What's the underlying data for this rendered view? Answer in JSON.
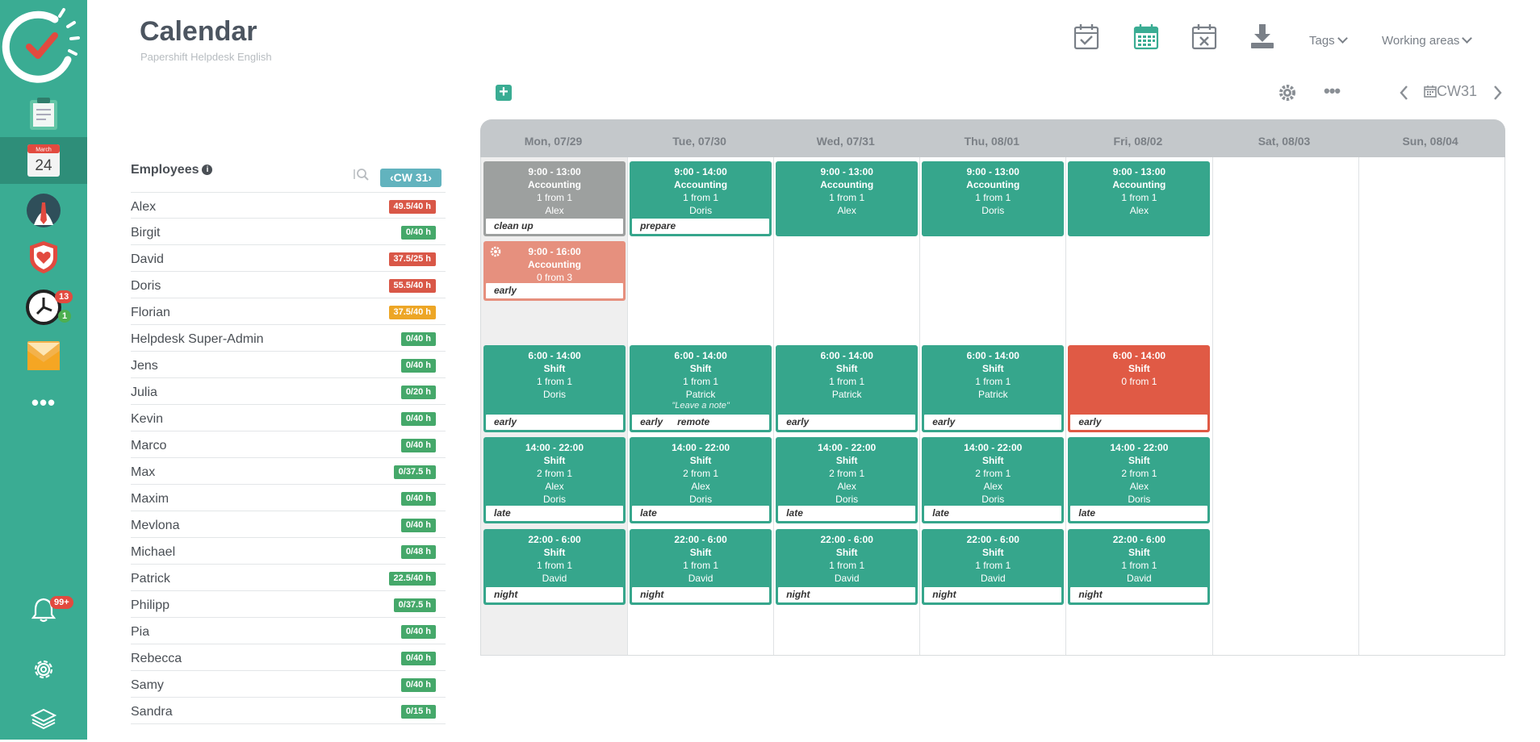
{
  "app": {
    "title": "Calendar",
    "subtitle": "Papershift Helpdesk English"
  },
  "sidebar": {
    "calendar_month": "March",
    "calendar_day": "24",
    "clock_badge_top": "13",
    "clock_badge_bottom": "1",
    "bell_badge": "99+",
    "more_label": "•••"
  },
  "header": {
    "tags_label": "Tags",
    "working_areas_label": "Working areas"
  },
  "toolbar": {
    "add_label": "+",
    "more_label": "•••",
    "week_label": "CW31"
  },
  "employees": {
    "title": "Employees",
    "info_label": "i",
    "cw_label": "‹CW 31›",
    "list": [
      {
        "name": "Alex",
        "hours": "49.5/40 h",
        "status": "red"
      },
      {
        "name": "Birgit",
        "hours": "0/40 h",
        "status": "green"
      },
      {
        "name": "David",
        "hours": "37.5/25 h",
        "status": "red"
      },
      {
        "name": "Doris",
        "hours": "55.5/40 h",
        "status": "red"
      },
      {
        "name": "Florian",
        "hours": "37.5/40 h",
        "status": "orange"
      },
      {
        "name": "Helpdesk Super-Admin",
        "hours": "0/40 h",
        "status": "green"
      },
      {
        "name": "Jens",
        "hours": "0/40 h",
        "status": "green"
      },
      {
        "name": "Julia",
        "hours": "0/20 h",
        "status": "green"
      },
      {
        "name": "Kevin",
        "hours": "0/40 h",
        "status": "green"
      },
      {
        "name": "Marco",
        "hours": "0/40 h",
        "status": "green"
      },
      {
        "name": "Max",
        "hours": "0/37.5 h",
        "status": "green"
      },
      {
        "name": "Maxim",
        "hours": "0/40 h",
        "status": "green"
      },
      {
        "name": "Mevlona",
        "hours": "0/40 h",
        "status": "green"
      },
      {
        "name": "Michael",
        "hours": "0/48 h",
        "status": "green"
      },
      {
        "name": "Patrick",
        "hours": "22.5/40 h",
        "status": "green"
      },
      {
        "name": "Philipp",
        "hours": "0/37.5 h",
        "status": "green"
      },
      {
        "name": "Pia",
        "hours": "0/40 h",
        "status": "green"
      },
      {
        "name": "Rebecca",
        "hours": "0/40 h",
        "status": "green"
      },
      {
        "name": "Samy",
        "hours": "0/40 h",
        "status": "green"
      },
      {
        "name": "Sandra",
        "hours": "0/15 h",
        "status": "green"
      }
    ]
  },
  "calendar": {
    "days": [
      "Mon, 07/29",
      "Tue, 07/30",
      "Wed, 07/31",
      "Thu, 08/01",
      "Fri, 08/02",
      "Sat, 08/03",
      "Sun, 08/04"
    ],
    "shifts": [
      {
        "day": 0,
        "row": "r1",
        "time": "9:00 - 13:00",
        "area": "Accounting",
        "fill": "1 from 1",
        "people": [
          "Alex"
        ],
        "tags": [
          "clean up"
        ],
        "color": "gray"
      },
      {
        "day": 1,
        "row": "r1",
        "time": "9:00 - 14:00",
        "area": "Accounting",
        "fill": "1 from 1",
        "people": [
          "Doris"
        ],
        "tags": [
          "prepare"
        ],
        "color": "green"
      },
      {
        "day": 2,
        "row": "r1",
        "time": "9:00 - 13:00",
        "area": "Accounting",
        "fill": "1 from 1",
        "people": [
          "Alex"
        ],
        "tags": [],
        "color": "green"
      },
      {
        "day": 3,
        "row": "r1",
        "time": "9:00 - 13:00",
        "area": "Accounting",
        "fill": "1 from 1",
        "people": [
          "Doris"
        ],
        "tags": [],
        "color": "green"
      },
      {
        "day": 4,
        "row": "r1",
        "time": "9:00 - 13:00",
        "area": "Accounting",
        "fill": "1 from 1",
        "people": [
          "Alex"
        ],
        "tags": [],
        "color": "green"
      },
      {
        "day": 0,
        "row": "r2",
        "time": "9:00 - 16:00",
        "area": "Accounting",
        "fill": "0 from 3",
        "people": [],
        "tags": [
          "early"
        ],
        "color": "salmon",
        "gear": true
      },
      {
        "day": 0,
        "row": "r3",
        "time": "6:00 - 14:00",
        "area": "Shift",
        "fill": "1 from 1",
        "people": [
          "Doris"
        ],
        "tags": [
          "early"
        ],
        "color": "green"
      },
      {
        "day": 1,
        "row": "r3",
        "time": "6:00 - 14:00",
        "area": "Shift",
        "fill": "1 from 1",
        "people": [
          "Patrick"
        ],
        "note": "\"Leave a note\"",
        "tags": [
          "early",
          "remote"
        ],
        "color": "green"
      },
      {
        "day": 2,
        "row": "r3",
        "time": "6:00 - 14:00",
        "area": "Shift",
        "fill": "1 from 1",
        "people": [
          "Patrick"
        ],
        "tags": [
          "early"
        ],
        "color": "green"
      },
      {
        "day": 3,
        "row": "r3",
        "time": "6:00 - 14:00",
        "area": "Shift",
        "fill": "1 from 1",
        "people": [
          "Patrick"
        ],
        "tags": [
          "early"
        ],
        "color": "green"
      },
      {
        "day": 4,
        "row": "r3",
        "time": "6:00 - 14:00",
        "area": "Shift",
        "fill": "0 from 1",
        "people": [],
        "tags": [
          "early"
        ],
        "color": "red"
      },
      {
        "day": 0,
        "row": "r4",
        "time": "14:00 - 22:00",
        "area": "Shift",
        "fill": "2 from 1",
        "people": [
          "Alex",
          "Doris"
        ],
        "tags": [
          "late"
        ],
        "color": "green"
      },
      {
        "day": 1,
        "row": "r4",
        "time": "14:00 - 22:00",
        "area": "Shift",
        "fill": "2 from 1",
        "people": [
          "Alex",
          "Doris"
        ],
        "tags": [
          "late"
        ],
        "color": "green"
      },
      {
        "day": 2,
        "row": "r4",
        "time": "14:00 - 22:00",
        "area": "Shift",
        "fill": "2 from 1",
        "people": [
          "Alex",
          "Doris"
        ],
        "tags": [
          "late"
        ],
        "color": "green"
      },
      {
        "day": 3,
        "row": "r4",
        "time": "14:00 - 22:00",
        "area": "Shift",
        "fill": "2 from 1",
        "people": [
          "Alex",
          "Doris"
        ],
        "tags": [
          "late"
        ],
        "color": "green"
      },
      {
        "day": 4,
        "row": "r4",
        "time": "14:00 - 22:00",
        "area": "Shift",
        "fill": "2 from 1",
        "people": [
          "Alex",
          "Doris"
        ],
        "tags": [
          "late"
        ],
        "color": "green"
      },
      {
        "day": 0,
        "row": "r5",
        "time": "22:00 - 6:00",
        "area": "Shift",
        "fill": "1 from 1",
        "people": [
          "David"
        ],
        "tags": [
          "night"
        ],
        "color": "green"
      },
      {
        "day": 1,
        "row": "r5",
        "time": "22:00 - 6:00",
        "area": "Shift",
        "fill": "1 from 1",
        "people": [
          "David"
        ],
        "tags": [
          "night"
        ],
        "color": "green"
      },
      {
        "day": 2,
        "row": "r5",
        "time": "22:00 - 6:00",
        "area": "Shift",
        "fill": "1 from 1",
        "people": [
          "David"
        ],
        "tags": [
          "night"
        ],
        "color": "green"
      },
      {
        "day": 3,
        "row": "r5",
        "time": "22:00 - 6:00",
        "area": "Shift",
        "fill": "1 from 1",
        "people": [
          "David"
        ],
        "tags": [
          "night"
        ],
        "color": "green"
      },
      {
        "day": 4,
        "row": "r5",
        "time": "22:00 - 6:00",
        "area": "Shift",
        "fill": "1 from 1",
        "people": [
          "David"
        ],
        "tags": [
          "night"
        ],
        "color": "green"
      }
    ]
  },
  "colors": {
    "brand": "#3aac93",
    "shift_green": "#36a68c",
    "shift_red": "#e05a45",
    "shift_salmon": "#e6907e",
    "shift_gray": "#9da09f",
    "hours_red": "#d95747",
    "hours_green": "#45a86a",
    "hours_orange": "#eda626"
  }
}
